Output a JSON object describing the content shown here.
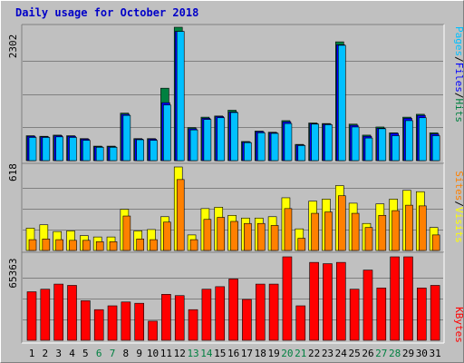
{
  "title": "Daily usage for October 2018",
  "colors": {
    "pages": "#00c0ff",
    "files": "#0000ff",
    "hits": "#008040",
    "sites": "#ff8000",
    "visits": "#ffff00",
    "kbytes": "#ff0000",
    "weekday_label": "#000000",
    "weekend_label": "#008040"
  },
  "legend": {
    "top": [
      "Pages",
      "/",
      "Files",
      "/",
      "Hits"
    ],
    "middle": [
      "Sites",
      "/",
      "Visits"
    ],
    "bottom": [
      "KBytes"
    ]
  },
  "chart_data": {
    "type": "bar",
    "title": "Daily usage for October 2018",
    "categories": [
      "1",
      "2",
      "3",
      "4",
      "5",
      "6",
      "7",
      "8",
      "9",
      "10",
      "11",
      "12",
      "13",
      "14",
      "15",
      "16",
      "17",
      "18",
      "19",
      "20",
      "21",
      "22",
      "23",
      "24",
      "25",
      "26",
      "27",
      "28",
      "29",
      "30",
      "31"
    ],
    "weekend_days": [
      "6",
      "7",
      "13",
      "14",
      "20",
      "21",
      "27",
      "28"
    ],
    "panels": [
      {
        "name": "top",
        "ymax_label": "2302",
        "ylim": [
          0,
          2302
        ],
        "series": [
          {
            "name": "Hits",
            "values": [
              430,
              420,
              440,
              430,
              380,
              250,
              250,
              820,
              380,
              380,
              1250,
              2302,
              570,
              750,
              770,
              870,
              330,
              510,
              490,
              690,
              280,
              650,
              640,
              2050,
              630,
              440,
              580,
              480,
              750,
              800,
              480
            ]
          },
          {
            "name": "Files",
            "values": [
              420,
              410,
              430,
              420,
              370,
              240,
              240,
              800,
              370,
              370,
              1000,
              2230,
              550,
              730,
              760,
              840,
              320,
              500,
              480,
              670,
              270,
              640,
              630,
              2000,
              610,
              420,
              560,
              470,
              730,
              780,
              460
            ]
          },
          {
            "name": "Pages",
            "values": [
              400,
              400,
              410,
              400,
              350,
              230,
              230,
              780,
              360,
              350,
              960,
              2230,
              530,
              710,
              740,
              830,
              310,
              480,
              470,
              640,
              260,
              630,
              620,
              1990,
              580,
              390,
              550,
              430,
              690,
              740,
              430
            ]
          }
        ]
      },
      {
        "name": "middle",
        "ymax_label": "618",
        "ylim": [
          0,
          618
        ],
        "series": [
          {
            "name": "Visits",
            "values": [
              165,
              190,
              140,
              145,
              110,
              100,
              100,
              305,
              145,
              155,
              250,
              618,
              115,
              310,
              320,
              260,
              240,
              240,
              250,
              390,
              160,
              365,
              380,
              480,
              350,
              200,
              345,
              380,
              445,
              435,
              170
            ]
          },
          {
            "name": "Sites",
            "values": [
              80,
              85,
              80,
              75,
              75,
              65,
              65,
              255,
              85,
              80,
              210,
              525,
              80,
              230,
              245,
              215,
              200,
              200,
              185,
              310,
              90,
              275,
              285,
              405,
              275,
              170,
              260,
              295,
              335,
              330,
              115
            ]
          }
        ]
      },
      {
        "name": "bottom",
        "ymax_label": "65363",
        "ylim": [
          0,
          65363
        ],
        "series": [
          {
            "name": "KBytes",
            "values": [
              38000,
              40000,
              44000,
              43000,
              31000,
              24000,
              27000,
              30000,
              29000,
              15000,
              36000,
              35000,
              24000,
              40000,
              42000,
              48000,
              32000,
              44000,
              44000,
              65363,
              27000,
              61000,
              60000,
              61000,
              40000,
              55000,
              41000,
              65363,
              65363,
              41000,
              43000
            ]
          }
        ]
      }
    ]
  }
}
